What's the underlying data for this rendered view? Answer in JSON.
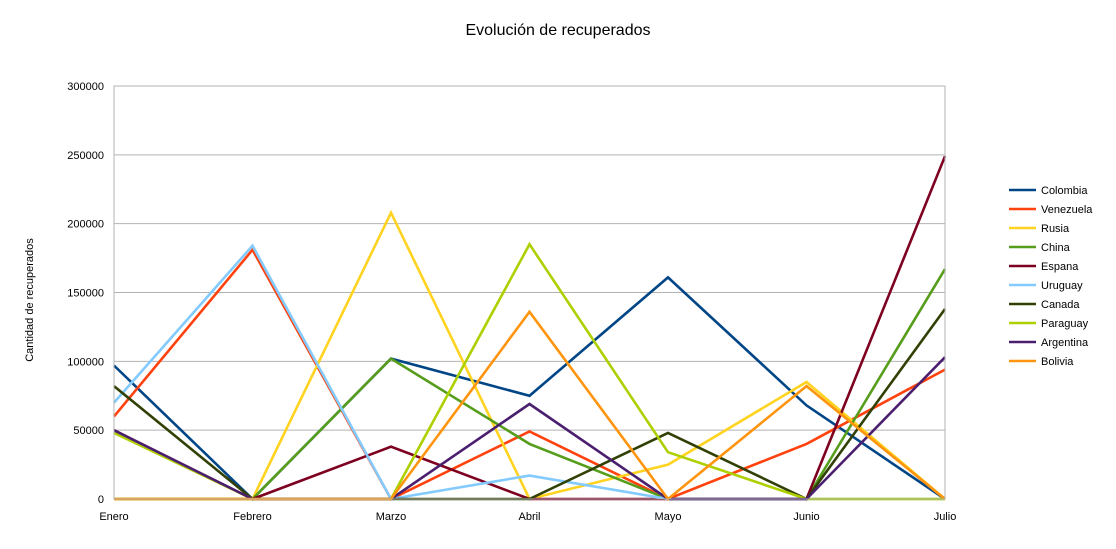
{
  "chart_data": {
    "type": "line",
    "title": "Evolución de recuperados",
    "xlabel": "",
    "ylabel": "Cantidad de recuperados",
    "categories": [
      "Enero",
      "Febrero",
      "Marzo",
      "Abril",
      "Mayo",
      "Junio",
      "Julio"
    ],
    "ylim": [
      0,
      300000
    ],
    "yticks": [
      0,
      50000,
      100000,
      150000,
      200000,
      250000,
      300000
    ],
    "ytick_labels": [
      "0",
      "50000",
      "100000",
      "150000",
      "200000",
      "250000",
      "300000"
    ],
    "grid": true,
    "legend_position": "right",
    "series": [
      {
        "name": "Colombia",
        "color": "#004586",
        "values": [
          97000,
          0,
          102000,
          75000,
          161000,
          68000,
          0
        ]
      },
      {
        "name": "Venezuela",
        "color": "#ff420e",
        "values": [
          60000,
          181000,
          0,
          49000,
          0,
          40000,
          94000
        ]
      },
      {
        "name": "Rusia",
        "color": "#ffd320",
        "values": [
          0,
          0,
          208000,
          0,
          25000,
          85000,
          0
        ]
      },
      {
        "name": "China",
        "color": "#579d1c",
        "values": [
          0,
          0,
          102000,
          40000,
          0,
          0,
          167000
        ]
      },
      {
        "name": "Espana",
        "color": "#7e0021",
        "values": [
          50000,
          0,
          38000,
          0,
          0,
          0,
          249000
        ]
      },
      {
        "name": "Uruguay",
        "color": "#83caff",
        "values": [
          70000,
          184000,
          0,
          17000,
          0,
          0,
          0
        ]
      },
      {
        "name": "Canada",
        "color": "#314004",
        "values": [
          82000,
          0,
          0,
          0,
          48000,
          0,
          138000
        ]
      },
      {
        "name": "Paraguay",
        "color": "#aecf00",
        "values": [
          48000,
          0,
          0,
          185000,
          34000,
          0,
          0
        ]
      },
      {
        "name": "Argentina",
        "color": "#4b1f6f",
        "values": [
          50000,
          0,
          0,
          69000,
          0,
          0,
          103000
        ]
      },
      {
        "name": "Bolivia",
        "color": "#ff950e",
        "values": [
          0,
          0,
          0,
          136000,
          0,
          82000,
          0
        ]
      }
    ]
  }
}
